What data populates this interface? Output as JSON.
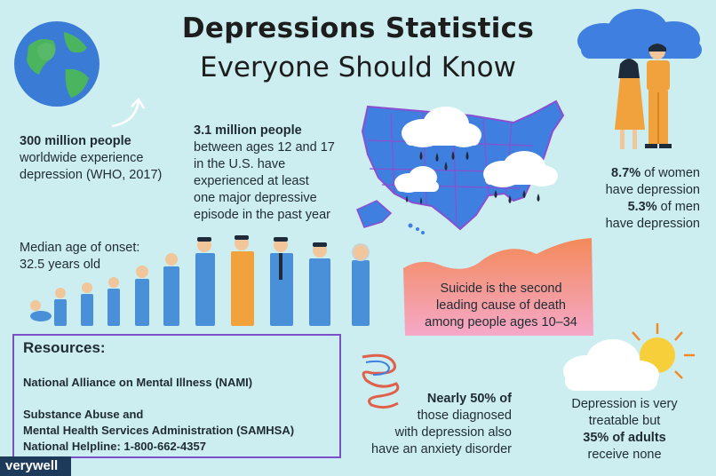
{
  "title_line1": "Depressions Statistics",
  "title_line2": "Everyone Should Know",
  "stat_worldwide": {
    "line1": "300 million people",
    "line2": "worldwide experience",
    "line3": "depression (WHO, 2017)"
  },
  "stat_youth": {
    "line1": "3.1 million people",
    "line2": "between ages 12 and 17",
    "line3": "in the U.S. have",
    "line4": "experienced at least",
    "line5": "one major depressive",
    "line6": "episode in the past year"
  },
  "stat_gender": {
    "women_pct": "8.7%",
    "women_text": " of women",
    "women_line2": "have depression",
    "men_pct": "5.3%",
    "men_text": " of men",
    "men_line2": "have depression"
  },
  "stat_onset": {
    "line1": "Median age of onset:",
    "line2": "32.5 years old"
  },
  "stat_suicide": {
    "line1": "Suicide is the second",
    "line2": "leading cause of death",
    "line3": "among people ages 10–34"
  },
  "stat_anxiety": {
    "line1": "Nearly 50% of",
    "line2": "those diagnosed",
    "line3": "with depression also",
    "line4": "have an anxiety disorder"
  },
  "stat_treatable": {
    "line1": "Depression is very",
    "line2": "treatable but",
    "line3": "35% of adults",
    "line4": "receive none"
  },
  "resources": {
    "title": "Resources:",
    "line1": "National Alliance on Mental Illness (NAMI)",
    "line2": "Substance Abuse and",
    "line3": "Mental Health Services Administration (SAMHSA)",
    "line4": "National Helpline: 1-800-662-4357"
  },
  "logo_text": "verywell",
  "colors": {
    "background": "#cdeef0",
    "earth_blue": "#3a7bd5",
    "earth_green": "#4bb45f",
    "map_blue": "#3f7fe0",
    "map_border": "#8a4fd0",
    "cloud": "#ffffff",
    "rain": "#1d2b3a",
    "person_blue": "#4a90d9",
    "person_orange": "#f2a23c",
    "sun": "#f6cf3a",
    "suicide_gradient_top": "#f48a5a",
    "suicide_gradient_bottom": "#f5a8c8",
    "resources_border": "#7a4fc7"
  }
}
